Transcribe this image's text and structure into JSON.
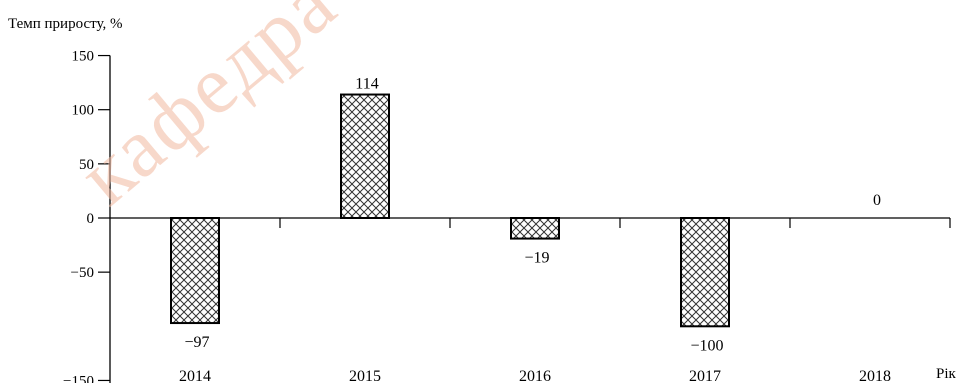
{
  "chart_data": {
    "type": "bar",
    "ylabel": "Темп приросту, %",
    "xlabel": "Рік",
    "categories": [
      "2014",
      "2015",
      "2016",
      "2017",
      "2018"
    ],
    "values": [
      -97,
      114,
      -19,
      -100,
      0
    ],
    "data_labels": [
      "−97",
      "114",
      "−19",
      "−100",
      "0"
    ],
    "ylim": [
      -150,
      150
    ],
    "yticks": [
      150,
      100,
      50,
      0,
      -50,
      -150
    ],
    "ytick_labels": [
      "150",
      "100",
      "50",
      "0",
      "−50",
      "−150"
    ],
    "bar_fill": "crosshatch",
    "grid": false,
    "legend": "none"
  },
  "watermark": "кафедра економ"
}
